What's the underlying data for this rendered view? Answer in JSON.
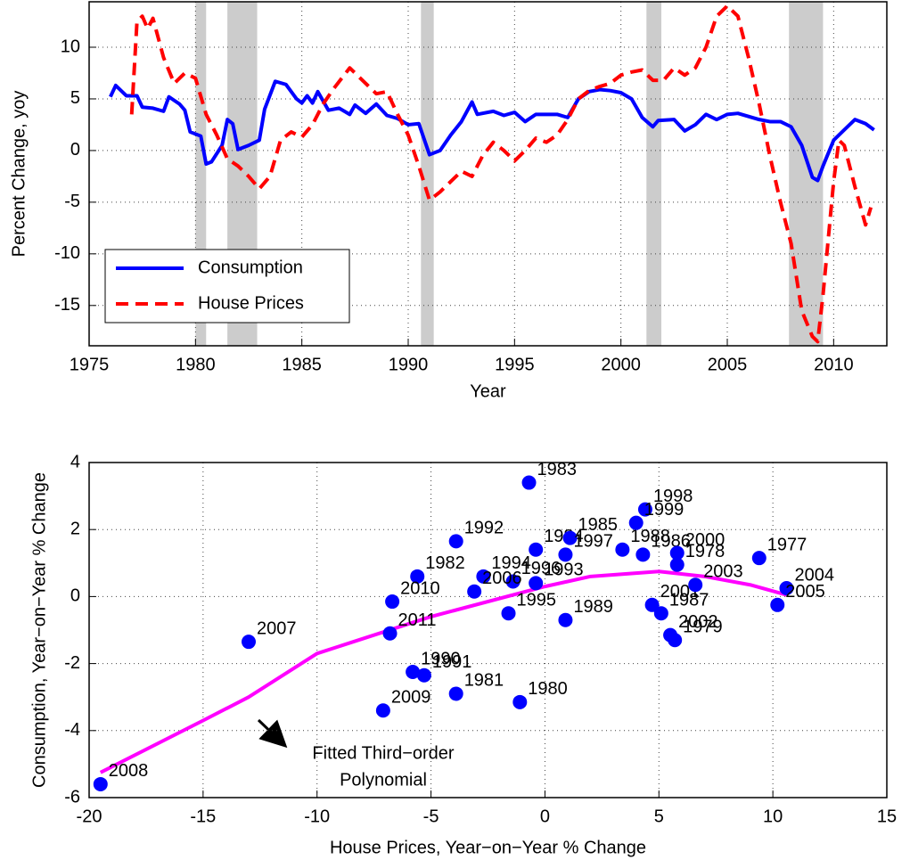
{
  "chart_data": [
    {
      "type": "line",
      "ylabel": "Percent Change, yoy",
      "xlabel": "Year",
      "xlim": [
        1975,
        2012.5
      ],
      "xticks": [
        1975,
        1980,
        1985,
        1990,
        1995,
        2000,
        2005,
        2010
      ],
      "ylim": [
        -18.9,
        14.4
      ],
      "yticks": [
        -15,
        -10,
        -5,
        0,
        5,
        10
      ],
      "grid": true,
      "legend": "lower left",
      "shaded": [
        [
          1980.0,
          1980.5
        ],
        [
          1981.5,
          1982.9
        ],
        [
          1990.6,
          1991.2
        ],
        [
          2001.2,
          2001.9
        ],
        [
          2007.9,
          2009.5
        ]
      ],
      "shade_color": "#cccccc",
      "series": [
        {
          "name": "Consumption",
          "color": "#0000ff",
          "style": "solid",
          "x": [
            1976.0,
            1976.25,
            1976.75,
            1977.25,
            1977.5,
            1978.0,
            1978.5,
            1978.75,
            1979.25,
            1979.5,
            1979.75,
            1980.25,
            1980.5,
            1980.75,
            1981.25,
            1981.5,
            1981.75,
            1982.0,
            1982.5,
            1983.0,
            1983.25,
            1983.75,
            1984.25,
            1984.75,
            1985.0,
            1985.25,
            1985.5,
            1985.75,
            1986.25,
            1986.75,
            1987.25,
            1987.5,
            1988.0,
            1988.5,
            1989.0,
            1989.5,
            1990.0,
            1990.5,
            1991.0,
            1991.5,
            1992.0,
            1992.5,
            1993.0,
            1993.25,
            1994.0,
            1994.5,
            1995.0,
            1995.5,
            1996.0,
            1996.5,
            1997.0,
            1997.5,
            1998.0,
            1998.5,
            1999.0,
            1999.5,
            2000.0,
            2000.5,
            2001.0,
            2001.5,
            2001.75,
            2002.5,
            2003.0,
            2003.5,
            2004.0,
            2004.5,
            2005.0,
            2005.5,
            2006.0,
            2006.5,
            2007.0,
            2007.5,
            2008.0,
            2008.5,
            2009.0,
            2009.25,
            2009.5,
            2010.0,
            2010.5,
            2011.0,
            2011.5,
            2011.9
          ],
          "values": [
            5.2,
            6.3,
            5.3,
            5.3,
            4.2,
            4.1,
            3.8,
            5.2,
            4.5,
            3.9,
            1.8,
            1.4,
            -1.3,
            -1.1,
            0.5,
            3.0,
            2.6,
            0.1,
            0.5,
            1.0,
            4.0,
            6.7,
            6.4,
            5.0,
            4.6,
            5.3,
            4.6,
            5.7,
            3.9,
            4.1,
            3.5,
            4.4,
            3.6,
            4.5,
            3.4,
            3.1,
            2.5,
            2.6,
            -0.4,
            0.0,
            1.5,
            2.8,
            4.7,
            3.5,
            3.8,
            3.4,
            3.7,
            2.8,
            3.5,
            3.5,
            3.5,
            3.2,
            5.0,
            5.7,
            5.9,
            5.8,
            5.6,
            5.0,
            3.2,
            2.3,
            2.9,
            3.0,
            1.9,
            2.5,
            3.5,
            3.0,
            3.5,
            3.6,
            3.3,
            3.0,
            2.8,
            2.8,
            2.3,
            0.5,
            -2.6,
            -2.9,
            -1.5,
            1.0,
            2.0,
            3.0,
            2.6,
            2.0
          ]
        },
        {
          "name": "House Prices",
          "color": "#ff0000",
          "style": "dashed",
          "x": [
            1977.0,
            1977.25,
            1977.5,
            1977.75,
            1978.0,
            1978.5,
            1979.0,
            1979.5,
            1980.0,
            1980.5,
            1981.0,
            1981.5,
            1982.0,
            1982.5,
            1983.0,
            1983.5,
            1984.0,
            1984.5,
            1985.0,
            1985.5,
            1986.0,
            1986.5,
            1987.25,
            1987.75,
            1988.5,
            1989.0,
            1989.5,
            1990.0,
            1990.5,
            1991.0,
            1991.5,
            1992.0,
            1992.5,
            1993.0,
            1993.5,
            1994.0,
            1994.5,
            1995.0,
            1995.5,
            1996.0,
            1996.5,
            1997.0,
            1997.5,
            1998.0,
            1998.5,
            1999.0,
            1999.5,
            2000.0,
            2000.5,
            2001.0,
            2001.5,
            2002.0,
            2002.5,
            2003.0,
            2003.5,
            2004.0,
            2004.5,
            2005.0,
            2005.5,
            2006.0,
            2006.5,
            2007.0,
            2007.5,
            2008.0,
            2008.5,
            2009.0,
            2009.25,
            2009.5,
            2010.0,
            2010.25,
            2010.5,
            2011.0,
            2011.5,
            2011.75
          ],
          "values": [
            3.5,
            12.5,
            13,
            11.8,
            12.8,
            9,
            6.5,
            7.5,
            7.0,
            3.5,
            1.5,
            -0.8,
            -1.5,
            -2.5,
            -3.7,
            -2.5,
            1.0,
            1.8,
            1.3,
            2.5,
            4.5,
            6.0,
            8.0,
            7.0,
            5.5,
            5.7,
            3.5,
            1.5,
            -1.5,
            -4.8,
            -4.0,
            -3.0,
            -2.0,
            -2.5,
            -0.5,
            0.8,
            0.0,
            -1.0,
            0.0,
            1.2,
            0.8,
            1.5,
            3.0,
            5.0,
            5.8,
            6.2,
            6.5,
            7.3,
            7.6,
            7.8,
            6.8,
            6.8,
            8.0,
            7.3,
            8.0,
            10.0,
            13.0,
            14.0,
            13.0,
            9.0,
            4.5,
            -0.5,
            -5.0,
            -9.0,
            -15.5,
            -18.0,
            -18.5,
            -14,
            -3,
            1.0,
            0.5,
            -3.5,
            -7.2,
            -5.5
          ]
        }
      ]
    },
    {
      "type": "scatter",
      "ylabel": "Consumption, Year−on−Year % Change",
      "xlabel": "House Prices, Year−on−Year % Change",
      "xlim": [
        -20,
        15
      ],
      "xticks": [
        -20,
        -15,
        -10,
        -5,
        0,
        5,
        10,
        15
      ],
      "ylim": [
        -6,
        4
      ],
      "yticks": [
        -6,
        -4,
        -2,
        0,
        2,
        4
      ],
      "grid": true,
      "color": "#0000ff",
      "point_labels": [
        "1977",
        "1978",
        "1979",
        "1980",
        "1981",
        "1982",
        "1983",
        "1984",
        "1985",
        "1986",
        "1987",
        "1988",
        "1989",
        "1990",
        "1991",
        "1992",
        "1993",
        "1994",
        "1995",
        "1996",
        "1997",
        "1998",
        "1999",
        "2000",
        "2001",
        "2002",
        "2003",
        "2004",
        "2005",
        "2006",
        "2007",
        "2008",
        "2009",
        "2010",
        "2011"
      ],
      "x": [
        9.4,
        5.8,
        5.7,
        -1.1,
        -3.9,
        -5.6,
        -0.7,
        -0.4,
        1.1,
        4.3,
        5.1,
        3.4,
        0.9,
        -5.8,
        -5.3,
        -3.9,
        -0.4,
        -2.7,
        -1.6,
        -1.4,
        0.9,
        4.4,
        4.0,
        5.8,
        4.7,
        5.5,
        6.6,
        10.6,
        10.2,
        -3.1,
        -13,
        -19.5,
        -7.1,
        -6.7,
        -6.8
      ],
      "values": [
        1.15,
        0.95,
        -1.3,
        -3.15,
        -2.9,
        0.6,
        3.4,
        1.4,
        1.75,
        1.25,
        -0.5,
        1.4,
        -0.7,
        -2.25,
        -2.35,
        1.65,
        0.4,
        0.6,
        -0.5,
        0.45,
        1.25,
        2.6,
        2.2,
        1.3,
        -0.25,
        -1.15,
        0.35,
        0.25,
        -0.25,
        0.15,
        -1.35,
        -5.6,
        -3.4,
        -0.15,
        -1.1
      ],
      "fit": {
        "color": "#ff00ff",
        "x": [
          -19.5,
          -15,
          -13,
          -10,
          -5,
          0,
          2,
          5,
          7,
          9,
          10.6
        ],
        "values": [
          -5.25,
          -3.7,
          -3.0,
          -1.7,
          -0.6,
          0.3,
          0.6,
          0.75,
          0.6,
          0.35,
          0.05
        ]
      },
      "annotation": [
        "Fitted Third−order",
        "Polynomial"
      ]
    }
  ]
}
